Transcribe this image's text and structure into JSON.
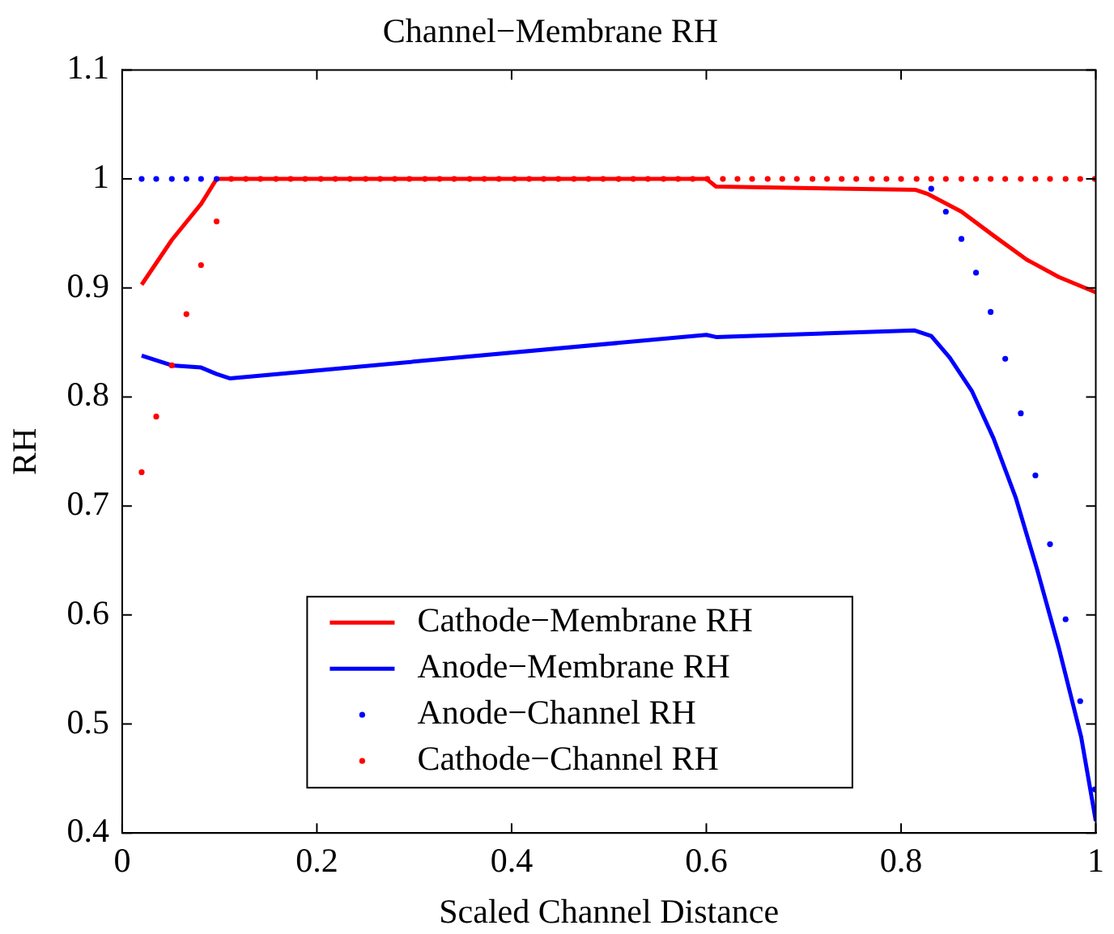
{
  "chart_data": {
    "type": "line",
    "title": "Channel−Membrane RH",
    "xlabel": "Scaled Channel Distance",
    "ylabel": "RH",
    "xlim": [
      0,
      1
    ],
    "ylim": [
      0.4,
      1.1
    ],
    "xticks": [
      0,
      0.2,
      0.4,
      0.6,
      0.8,
      1
    ],
    "yticks": [
      0.4,
      0.5,
      0.6,
      0.7,
      0.8,
      0.9,
      1,
      1.1
    ],
    "grid": false,
    "legend": "bottom",
    "series": [
      {
        "name": "Cathode−Membrane RH",
        "color": "#ff0000",
        "marker": "none",
        "x": [
          0.02,
          0.051,
          0.081,
          0.097,
          0.6,
          0.61,
          0.815,
          0.828,
          0.862,
          0.895,
          0.929,
          0.962,
          1.0
        ],
        "values": [
          0.903,
          0.944,
          0.977,
          1,
          1,
          0.993,
          0.99,
          0.986,
          0.97,
          0.948,
          0.926,
          0.91,
          0.896
        ]
      },
      {
        "name": "Anode−Membrane RH",
        "color": "#0000ff",
        "marker": "none",
        "x": [
          0.02,
          0.051,
          0.081,
          0.097,
          0.111,
          0.6,
          0.61,
          0.814,
          0.831,
          0.85,
          0.873,
          0.895,
          0.918,
          0.94,
          0.962,
          0.985,
          1.0
        ],
        "values": [
          0.838,
          0.829,
          0.827,
          0.821,
          0.817,
          0.857,
          0.855,
          0.861,
          0.856,
          0.836,
          0.805,
          0.762,
          0.707,
          0.641,
          0.57,
          0.488,
          0.411
        ]
      },
      {
        "name": "Anode−Channel RH",
        "type": "scatter",
        "color": "#0000ff",
        "marker": "circle",
        "x": [
          0.02,
          0.035,
          0.051,
          0.066,
          0.081,
          0.097,
          0.112,
          0.127,
          0.142,
          0.158,
          0.173,
          0.188,
          0.204,
          0.219,
          0.234,
          0.25,
          0.265,
          0.28,
          0.295,
          0.311,
          0.326,
          0.341,
          0.357,
          0.372,
          0.387,
          0.403,
          0.418,
          0.433,
          0.448,
          0.464,
          0.479,
          0.494,
          0.51,
          0.525,
          0.54,
          0.556,
          0.571,
          0.586,
          0.601,
          0.617,
          0.632,
          0.647,
          0.663,
          0.678,
          0.693,
          0.709,
          0.724,
          0.739,
          0.754,
          0.77,
          0.785,
          0.8,
          0.816,
          0.831,
          0.846,
          0.862,
          0.877,
          0.892,
          0.907,
          0.923,
          0.938,
          0.953,
          0.969,
          0.984,
          0.999
        ],
        "values": [
          1,
          1,
          1,
          1,
          1,
          1,
          null,
          null,
          null,
          null,
          null,
          null,
          null,
          null,
          null,
          null,
          null,
          null,
          null,
          null,
          null,
          null,
          null,
          null,
          null,
          null,
          null,
          null,
          null,
          null,
          null,
          null,
          null,
          null,
          null,
          null,
          null,
          null,
          null,
          null,
          null,
          null,
          null,
          null,
          null,
          null,
          null,
          null,
          null,
          null,
          null,
          null,
          null,
          0.991,
          0.97,
          0.945,
          0.914,
          0.878,
          0.835,
          0.785,
          0.728,
          0.665,
          0.596,
          0.521,
          0.44
        ]
      },
      {
        "name": "Cathode−Channel RH",
        "type": "scatter",
        "color": "#ff0000",
        "marker": "circle",
        "x": [
          0.02,
          0.035,
          0.051,
          0.066,
          0.081,
          0.097,
          0.112,
          0.127,
          0.142,
          0.158,
          0.173,
          0.188,
          0.204,
          0.219,
          0.234,
          0.25,
          0.265,
          0.28,
          0.295,
          0.311,
          0.326,
          0.341,
          0.357,
          0.372,
          0.387,
          0.403,
          0.418,
          0.433,
          0.448,
          0.464,
          0.479,
          0.494,
          0.51,
          0.525,
          0.54,
          0.556,
          0.571,
          0.586,
          0.601,
          0.617,
          0.632,
          0.647,
          0.663,
          0.678,
          0.693,
          0.709,
          0.724,
          0.739,
          0.754,
          0.77,
          0.785,
          0.8,
          0.816,
          0.831,
          0.846,
          0.862,
          0.877,
          0.892,
          0.907,
          0.923,
          0.938,
          0.953,
          0.969,
          0.984,
          0.999
        ],
        "values": [
          0.731,
          0.782,
          0.829,
          0.876,
          0.921,
          0.961,
          1,
          1,
          1,
          1,
          1,
          1,
          1,
          1,
          1,
          1,
          1,
          1,
          1,
          1,
          1,
          1,
          1,
          1,
          1,
          1,
          1,
          1,
          1,
          1,
          1,
          1,
          1,
          1,
          1,
          1,
          1,
          1,
          1,
          1,
          1,
          1,
          1,
          1,
          1,
          1,
          1,
          1,
          1,
          1,
          1,
          1,
          1,
          1,
          1,
          1,
          1,
          1,
          1,
          1,
          1,
          1,
          1,
          1,
          1
        ]
      }
    ]
  }
}
